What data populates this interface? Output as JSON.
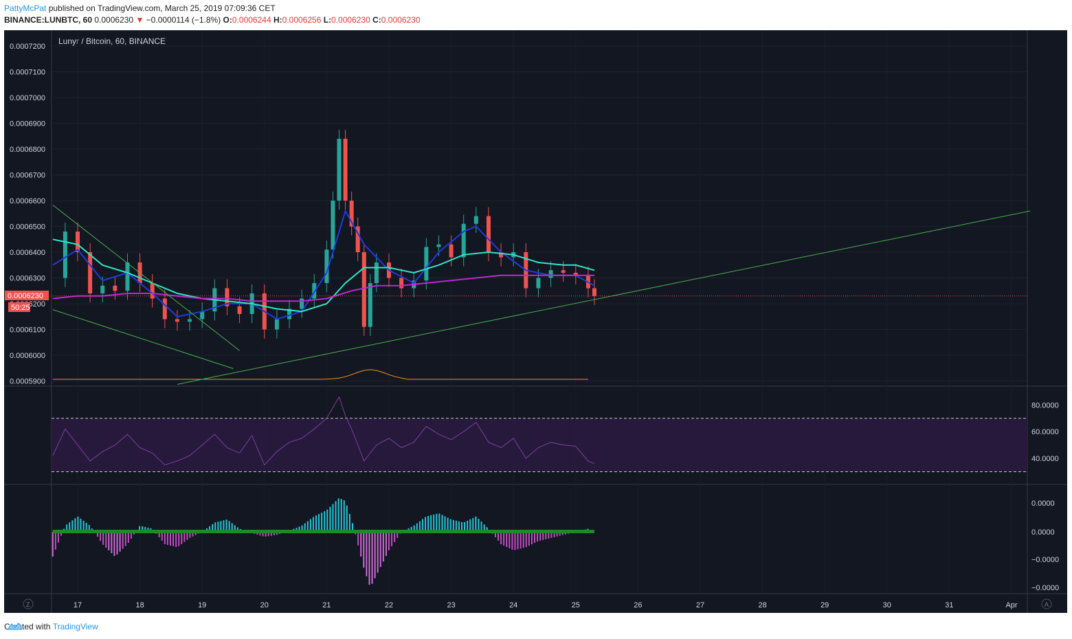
{
  "header": {
    "user": "PattyMcPat",
    "published_text": "published on TradingView.com, March 25, 2019 07:09:36 CET",
    "symbol": "BINANCE:LUNBTC, 60",
    "last": "0.0006230",
    "change_arrow": "▼",
    "change": "−0.0000114 (−1.8%)",
    "open_label": "O:",
    "open": "0.0006244",
    "high_label": "H:",
    "high": "0.0006256",
    "low_label": "L:",
    "low": "0.0006230",
    "close_label": "C:",
    "close": "0.0006230"
  },
  "footer": {
    "created_with": "Created with",
    "brand": "TradingView"
  },
  "colors": {
    "bg": "#131722",
    "up": "#26a69a",
    "down": "#ef5350",
    "ema_fast": "#1e3cdc",
    "ema_mid": "#2ee6c8",
    "ema_slow": "#c026d3",
    "trend": "#4caf50",
    "rsi": "#7e3fa0"
  },
  "chart_data": [
    {
      "type": "line",
      "title": "Lunyr / Bitcoin, 60, BINANCE",
      "x_ticks": [
        "17",
        "18",
        "19",
        "20",
        "21",
        "22",
        "23",
        "24",
        "25",
        "26",
        "27",
        "28",
        "29",
        "30",
        "31",
        "Apr"
      ],
      "y_ticks": [
        "0.0007200",
        "0.0007100",
        "0.0007000",
        "0.0006900",
        "0.0006800",
        "0.0006700",
        "0.0006600",
        "0.0006500",
        "0.0006400",
        "0.0006300",
        "0.0006200",
        "0.0006100",
        "0.0006000",
        "0.0005900"
      ],
      "ylim": [
        0.000589,
        0.000725
      ],
      "last_price_label": "0.0006230",
      "countdown_label": "50:25",
      "series": [
        {
          "role": "close",
          "x": [
            16.6,
            16.8,
            17.0,
            17.2,
            17.4,
            17.6,
            17.8,
            18.0,
            18.2,
            18.4,
            18.6,
            18.8,
            19.0,
            19.2,
            19.4,
            19.6,
            19.8,
            20.0,
            20.2,
            20.4,
            20.6,
            20.8,
            21.0,
            21.1,
            21.2,
            21.3,
            21.4,
            21.5,
            21.6,
            21.7,
            21.8,
            22.0,
            22.2,
            22.4,
            22.6,
            22.8,
            23.0,
            23.2,
            23.4,
            23.6,
            23.8,
            24.0,
            24.2,
            24.4,
            24.6,
            24.8,
            25.0,
            25.2,
            25.3
          ],
          "y": [
            0.00063,
            0.000648,
            0.00064,
            0.000624,
            0.000627,
            0.000625,
            0.000636,
            0.000628,
            0.000622,
            0.000614,
            0.000613,
            0.000614,
            0.000617,
            0.000626,
            0.000619,
            0.000616,
            0.000624,
            0.00061,
            0.000614,
            0.000618,
            0.000622,
            0.000628,
            0.000641,
            0.00066,
            0.000684,
            0.00066,
            0.00065,
            0.00064,
            0.000611,
            0.000628,
            0.000636,
            0.00063,
            0.000626,
            0.000629,
            0.000642,
            0.000643,
            0.000638,
            0.000651,
            0.000654,
            0.00064,
            0.000638,
            0.00064,
            0.000626,
            0.00063,
            0.000633,
            0.000632,
            0.000631,
            0.000626,
            0.000623
          ]
        },
        {
          "role": "ema_fast",
          "x": [
            16.6,
            17.0,
            17.4,
            17.8,
            18.2,
            18.6,
            19.0,
            19.4,
            19.8,
            20.2,
            20.6,
            21.0,
            21.3,
            21.6,
            22.0,
            22.4,
            22.8,
            23.2,
            23.4,
            23.8,
            24.2,
            24.6,
            25.0,
            25.3
          ],
          "y": [
            0.000635,
            0.000641,
            0.000629,
            0.000632,
            0.000624,
            0.000615,
            0.000617,
            0.00062,
            0.00062,
            0.000614,
            0.000617,
            0.000632,
            0.000656,
            0.000643,
            0.000633,
            0.000628,
            0.00064,
            0.000648,
            0.00065,
            0.00064,
            0.000633,
            0.000631,
            0.000631,
            0.000627
          ]
        },
        {
          "role": "ema_mid",
          "x": [
            16.6,
            17.0,
            17.4,
            17.8,
            18.2,
            18.6,
            19.0,
            19.4,
            19.8,
            20.2,
            20.6,
            21.0,
            21.3,
            21.6,
            22.0,
            22.4,
            22.8,
            23.2,
            23.6,
            24.0,
            24.4,
            24.8,
            25.0,
            25.3
          ],
          "y": [
            0.000645,
            0.000643,
            0.000635,
            0.000632,
            0.000628,
            0.000624,
            0.000622,
            0.000621,
            0.00062,
            0.000618,
            0.000617,
            0.00062,
            0.000628,
            0.000634,
            0.000634,
            0.000632,
            0.000635,
            0.000639,
            0.00064,
            0.000639,
            0.000636,
            0.000635,
            0.000635,
            0.000633
          ]
        },
        {
          "role": "ema_slow",
          "x": [
            16.6,
            17.0,
            17.4,
            17.8,
            18.2,
            18.6,
            19.0,
            19.4,
            19.8,
            20.2,
            20.6,
            21.0,
            21.4,
            21.8,
            22.2,
            22.6,
            23.0,
            23.4,
            23.8,
            24.2,
            24.6,
            25.0,
            25.3
          ],
          "y": [
            0.000622,
            0.000623,
            0.000623,
            0.000624,
            0.000624,
            0.000623,
            0.000622,
            0.000622,
            0.000621,
            0.000621,
            0.000621,
            0.000622,
            0.000625,
            0.000627,
            0.000627,
            0.000628,
            0.000629,
            0.00063,
            0.000631,
            0.000631,
            0.000631,
            0.000631,
            0.000631
          ]
        }
      ]
    },
    {
      "type": "line",
      "title": "",
      "y_ticks": [
        "80.0000",
        "60.0000",
        "40.0000"
      ],
      "ylim": [
        22,
        92
      ],
      "bands": [
        30,
        70
      ],
      "series": [
        {
          "role": "rsi",
          "x": [
            16.6,
            16.8,
            17.0,
            17.2,
            17.4,
            17.6,
            17.8,
            18.0,
            18.2,
            18.4,
            18.6,
            18.8,
            19.0,
            19.2,
            19.4,
            19.6,
            19.8,
            20.0,
            20.2,
            20.4,
            20.6,
            20.8,
            21.0,
            21.1,
            21.2,
            21.3,
            21.4,
            21.6,
            21.8,
            22.0,
            22.2,
            22.4,
            22.6,
            22.8,
            23.0,
            23.2,
            23.4,
            23.6,
            23.8,
            24.0,
            24.2,
            24.4,
            24.6,
            24.8,
            25.0,
            25.2,
            25.3
          ],
          "y": [
            42,
            62,
            50,
            38,
            45,
            50,
            58,
            48,
            44,
            35,
            38,
            42,
            50,
            58,
            48,
            44,
            57,
            35,
            45,
            52,
            55,
            62,
            70,
            78,
            86,
            72,
            62,
            38,
            50,
            55,
            48,
            52,
            64,
            58,
            54,
            60,
            67,
            52,
            48,
            55,
            40,
            48,
            52,
            50,
            49,
            38,
            36
          ]
        }
      ]
    },
    {
      "type": "bar",
      "title": "",
      "y_ticks": [
        "0.0000",
        "0.0000",
        "−0.0000",
        "−0.0000"
      ],
      "ylim": [
        -1.0,
        0.55
      ],
      "x": [
        16.6,
        16.8,
        17.0,
        17.2,
        17.4,
        17.6,
        17.8,
        18.0,
        18.2,
        18.4,
        18.6,
        18.8,
        19.0,
        19.2,
        19.4,
        19.6,
        19.8,
        20.0,
        20.2,
        20.4,
        20.6,
        20.8,
        21.0,
        21.2,
        21.3,
        21.4,
        21.6,
        21.7,
        21.8,
        22.0,
        22.2,
        22.4,
        22.6,
        22.8,
        23.0,
        23.2,
        23.4,
        23.6,
        23.8,
        24.0,
        24.2,
        24.4,
        24.6,
        24.8,
        25.0,
        25.2,
        25.3
      ],
      "values": [
        -0.4,
        0.1,
        0.25,
        0.1,
        -0.2,
        -0.4,
        -0.2,
        0.1,
        0.05,
        -0.2,
        -0.25,
        -0.1,
        0.0,
        0.15,
        0.2,
        0.05,
        -0.02,
        -0.08,
        -0.05,
        0.02,
        0.1,
        0.25,
        0.35,
        0.55,
        0.5,
        0.2,
        -0.6,
        -0.9,
        -0.7,
        -0.3,
        0.0,
        0.1,
        0.25,
        0.3,
        0.2,
        0.15,
        0.25,
        0.05,
        -0.2,
        -0.3,
        -0.25,
        -0.15,
        -0.1,
        -0.05,
        0.0,
        0.05,
        0.0
      ]
    }
  ]
}
